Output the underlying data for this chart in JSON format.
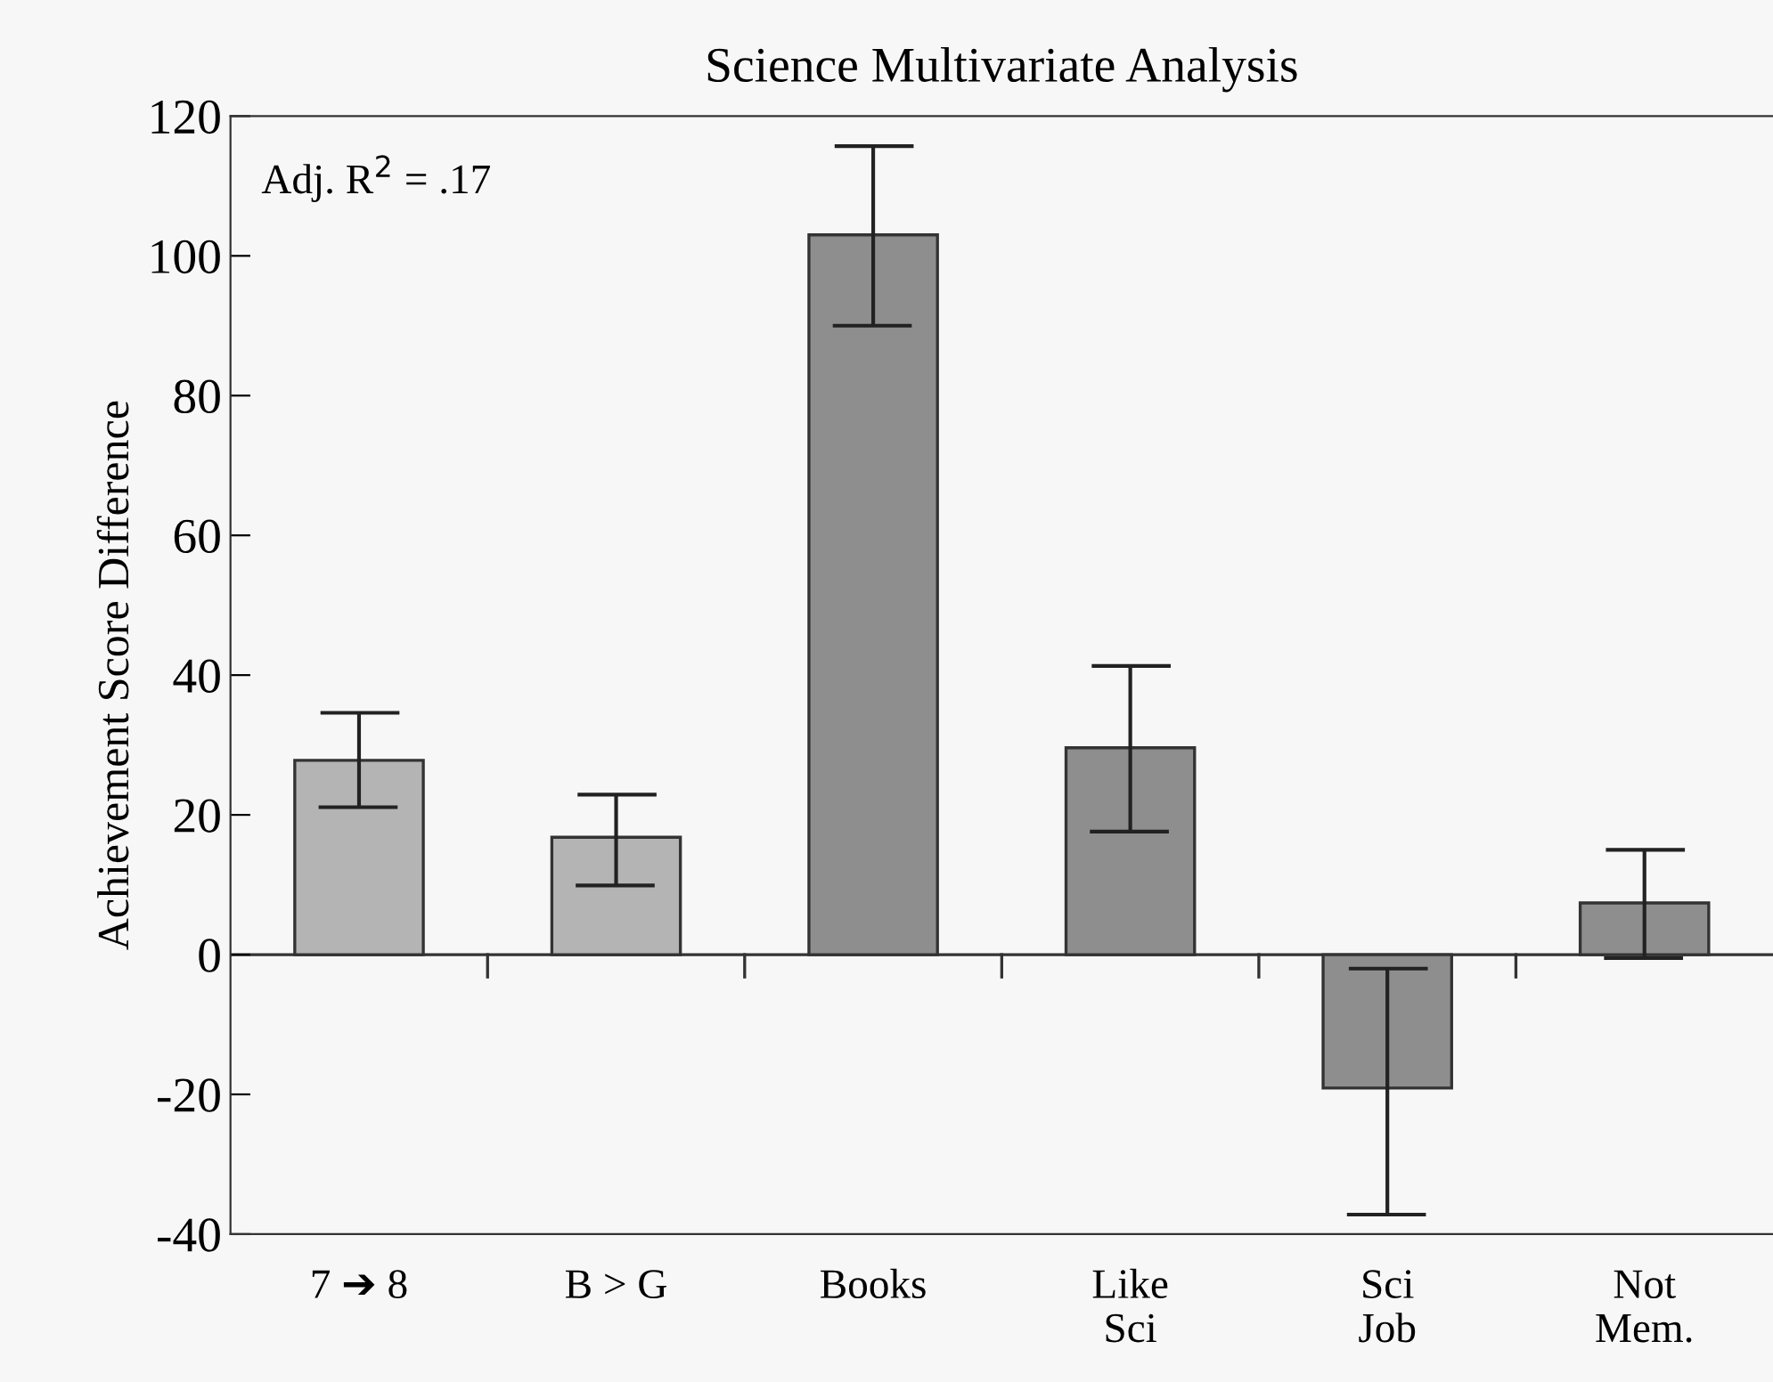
{
  "chart_data": {
    "type": "bar",
    "title": "Science Multivariate Analysis",
    "ylabel": "Achievement Score Difference",
    "categories": [
      "7 ➔ 8",
      "B > G",
      "Books",
      "Like\nSci",
      "Sci\nJob",
      "Not\nMem."
    ],
    "values": [
      27.8,
      16.8,
      103,
      29.6,
      -19.1,
      7.4
    ],
    "colors": [
      "#b4b4b4",
      "#b4b4b4",
      "#8e8e8e",
      "#8e8e8e",
      "#8e8e8e",
      "#8e8e8e"
    ],
    "errors": [
      [
        21.1,
        34.6
      ],
      [
        9.9,
        22.9
      ],
      [
        90,
        115.7
      ],
      [
        17.6,
        41.3
      ],
      [
        -37.2,
        -2
      ],
      [
        -0.5,
        15
      ]
    ],
    "ref_lines": [
      {
        "axis": "y",
        "value": 0
      }
    ],
    "ylim": [
      -40,
      120
    ],
    "yticks": [
      -40,
      -20,
      0,
      20,
      40,
      60,
      80,
      100,
      120
    ],
    "annotations": [
      "Adj. R$^{2}$ = .17"
    ],
    "grid": false,
    "legend": false
  }
}
